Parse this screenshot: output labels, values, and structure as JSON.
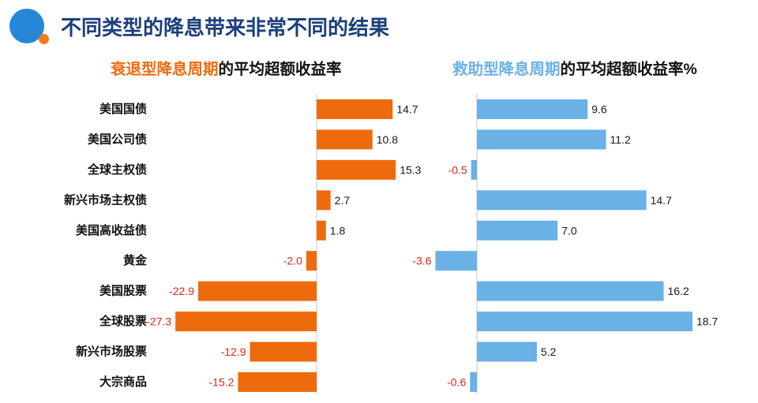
{
  "slide": {
    "title": "不同类型的降息带来非常不同的结果",
    "title_color": "#1c3f7c",
    "logo_color": "#2686d7",
    "logo_dot_color": "#f07c1c"
  },
  "chart_data": {
    "type": "bar",
    "orientation": "horizontal",
    "categories": [
      "美国国债",
      "美国公司债",
      "全球主权债",
      "新兴市场主权债",
      "美国高收益债",
      "黄金",
      "美国股票",
      "全球股票",
      "新兴市场股票",
      "大宗商品"
    ],
    "series": [
      {
        "name": "衰退型降息周期",
        "title_suffix": "的平均超额收益率",
        "values": [
          14.7,
          10.8,
          15.3,
          2.7,
          1.8,
          -2.0,
          -22.9,
          -27.3,
          -12.9,
          -15.2
        ],
        "color": "#ee6b0d",
        "xlim": [
          -30,
          20
        ]
      },
      {
        "name": "救助型降息周期",
        "title_suffix": "的平均超额收益率%",
        "values": [
          9.6,
          11.2,
          -0.5,
          14.7,
          7.0,
          -3.6,
          16.2,
          18.7,
          5.2,
          -0.6
        ],
        "color": "#6ab1e6",
        "xlim": [
          -5,
          20
        ]
      }
    ],
    "positive_label_color": "#1a1a1a",
    "negative_label_color": "#e3241d",
    "axis_color": "#c8c8c8",
    "grid": false
  }
}
